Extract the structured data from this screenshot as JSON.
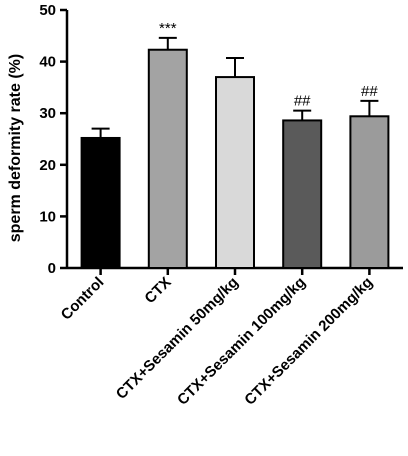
{
  "chart_data": {
    "type": "bar",
    "categories": [
      "Control",
      "CTX",
      "CTX+Sesamin 50mg/kg",
      "CTX+Sesamin 100mg/kg",
      "CTX+Sesamin 200mg/kg"
    ],
    "values": [
      25.2,
      42.3,
      37.0,
      28.6,
      29.4
    ],
    "errors": [
      1.8,
      2.3,
      3.7,
      1.9,
      3.0
    ],
    "annotations": [
      "",
      "***",
      "",
      "##",
      "##"
    ],
    "bar_colors": [
      "#000000",
      "#a3a3a3",
      "#d9d9d9",
      "#5a5a5a",
      "#9b9b9b"
    ],
    "ylabel": "sperm deformity rate (%)",
    "ylim": [
      0,
      50
    ],
    "yticks": [
      0,
      10,
      20,
      30,
      40,
      50
    ],
    "grid": false,
    "legend": "none"
  }
}
